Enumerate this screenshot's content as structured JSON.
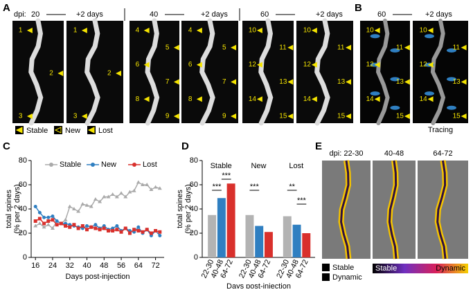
{
  "panels": {
    "letters": [
      "A",
      "B",
      "C",
      "D",
      "E"
    ],
    "a": {
      "dpi": "dpi:",
      "stages": [
        "20",
        "40",
        "60"
      ],
      "later": "+2 days",
      "images": [
        [
          "1",
          "2",
          "3"
        ],
        [
          "1",
          "2",
          "3"
        ],
        [
          "4",
          "5",
          "6",
          "7",
          "8",
          "9"
        ],
        [
          "4",
          "5",
          "6",
          "7",
          "8",
          "9"
        ],
        [
          "10",
          "11",
          "12",
          "13",
          "14",
          "15"
        ],
        [
          "10",
          "11",
          "12",
          "13",
          "14",
          "15"
        ]
      ],
      "legend": [
        "Stable",
        "New",
        "Lost"
      ]
    },
    "b": {
      "stage": "60",
      "later": "+2 days",
      "images": [
        [
          "10",
          "11",
          "12",
          "13",
          "14",
          "15"
        ],
        [
          "10",
          "11",
          "12",
          "13",
          "14",
          "15"
        ]
      ],
      "caption": "Tracing"
    },
    "e": {
      "stages": [
        "dpi: 22-30",
        "40-48",
        "64-72"
      ],
      "legend": [
        "Stable",
        "Dynamic"
      ],
      "scale": [
        "Stable",
        "Dynamic"
      ]
    }
  },
  "chart_data": [
    {
      "type": "line",
      "ylabel": [
        "total spines",
        "(% per 2 days)"
      ],
      "xlabel": "Days post-injection",
      "x": [
        16,
        18,
        20,
        22,
        24,
        26,
        28,
        30,
        32,
        34,
        36,
        38,
        40,
        42,
        44,
        46,
        48,
        50,
        52,
        54,
        56,
        58,
        60,
        62,
        64,
        66,
        68,
        70,
        72,
        74
      ],
      "series": [
        {
          "name": "Stable",
          "color": "#aaaaaa",
          "values": [
            26,
            28,
            25,
            27,
            24,
            30,
            28,
            31,
            42,
            40,
            38,
            44,
            43,
            42,
            48,
            46,
            50,
            50,
            52,
            50,
            53,
            50,
            54,
            55,
            62,
            60,
            60,
            56,
            58,
            57
          ]
        },
        {
          "name": "New",
          "color": "#2f7fc1",
          "values": [
            42,
            37,
            33,
            33,
            34,
            30,
            28,
            28,
            27,
            26,
            25,
            24,
            26,
            25,
            27,
            24,
            26,
            23,
            24,
            26,
            22,
            24,
            22,
            21,
            25,
            20,
            23,
            18,
            22,
            18
          ]
        },
        {
          "name": "Lost",
          "color": "#d9302c",
          "values": [
            30,
            32,
            28,
            30,
            31,
            27,
            28,
            26,
            25,
            27,
            24,
            26,
            23,
            25,
            24,
            23,
            24,
            22,
            22,
            23,
            21,
            24,
            20,
            23,
            22,
            21,
            23,
            20,
            22,
            21
          ]
        }
      ],
      "xlim": [
        14,
        76
      ],
      "xticks": [
        16,
        24,
        32,
        40,
        48,
        56,
        64,
        72
      ],
      "ylim": [
        0,
        80
      ],
      "yticks": [
        0,
        20,
        40,
        60,
        80
      ]
    },
    {
      "type": "bar",
      "ylabel": [
        "total spines",
        "(% per 2 days)"
      ],
      "xlabel": "Days post-injection",
      "categories": [
        "Stable",
        "New",
        "Lost"
      ],
      "series": [
        {
          "name": "22-30",
          "color": "#b3b3b3",
          "values": [
            35,
            35,
            34
          ]
        },
        {
          "name": "40-48",
          "color": "#2f7fc1",
          "values": [
            49,
            26,
            27
          ]
        },
        {
          "name": "64-72",
          "color": "#d9302c",
          "values": [
            61,
            21,
            20
          ]
        }
      ],
      "annotations": [
        "***",
        "***",
        "***",
        "**",
        "***"
      ],
      "ylim": [
        0,
        80
      ],
      "yticks": [
        0,
        20,
        40,
        60,
        80
      ]
    }
  ]
}
